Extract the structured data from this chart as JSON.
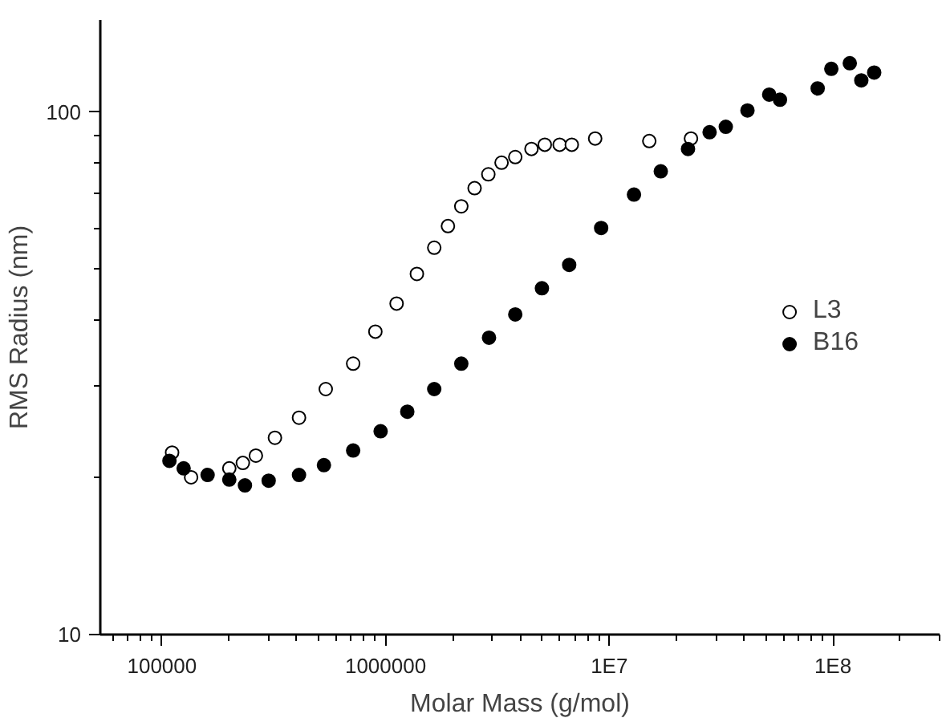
{
  "chart_data": {
    "type": "scatter",
    "xlabel": "Molar Mass (g/mol)",
    "ylabel": "RMS Radius (nm)",
    "log": "xy",
    "marker": "circle",
    "legend": "right",
    "grid": false,
    "xlim": [
      53000,
      300000000
    ],
    "ylim": [
      10,
      150
    ],
    "xticks": [
      100000,
      1000000,
      {
        "value": 10000000,
        "label": "1E7"
      },
      {
        "value": 100000000,
        "label": "1E8"
      }
    ],
    "yticks": [
      10,
      100
    ],
    "series": [
      {
        "name": "L3",
        "color": "#ffffff",
        "x": [
          111000,
          120000,
          135000,
          165000,
          200000,
          230000,
          263000,
          320000,
          410000,
          540000,
          716000,
          900000,
          1120000,
          1380000,
          1650000,
          1900000,
          2180000,
          2500000,
          2880000,
          3300000,
          3800000,
          4490000,
          5150000,
          6000000,
          6800000,
          8650000,
          15100000,
          23200000
        ],
        "values": [
          22.3,
          null,
          20,
          null,
          20.8,
          21.3,
          22,
          23.8,
          26,
          29.5,
          33,
          38,
          43,
          49,
          55,
          60.5,
          66,
          71.5,
          76,
          80,
          82,
          85,
          86.6,
          86.6,
          86.6,
          89,
          88,
          89
        ]
      },
      {
        "name": "B16",
        "color": "#000000",
        "x": [
          108000,
          125000,
          160000,
          200000,
          235000,
          300000,
          410000,
          530000,
          716000,
          950000,
          1250000,
          1650000,
          2180000,
          2900000,
          3800000,
          5000000,
          6620000,
          9200000,
          12900000,
          17000000,
          22500000,
          28100000,
          33200000,
          41500000,
          51900000,
          58000000,
          85500000,
          98400000,
          119000000,
          134000000,
          153000000
        ],
        "values": [
          21.5,
          20.8,
          20.2,
          19.8,
          19.3,
          19.7,
          20.2,
          21.1,
          22.5,
          24.5,
          26.7,
          29.5,
          33,
          37,
          41,
          46,
          51,
          60,
          69.5,
          77,
          85,
          91.5,
          93.7,
          100.7,
          108,
          105.6,
          111,
          121,
          124,
          115,
          119
        ]
      }
    ]
  }
}
